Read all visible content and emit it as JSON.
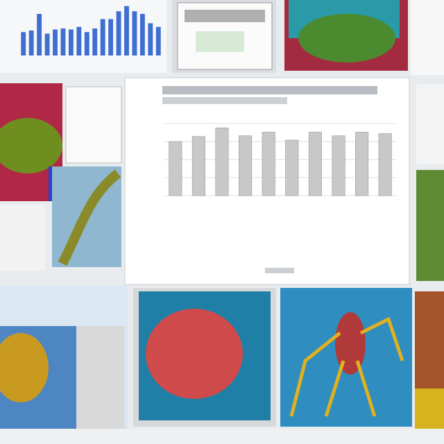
{
  "chart_data": [
    {
      "type": "bar",
      "values": [
        75,
        82,
        94,
        83,
        88,
        77,
        88,
        83,
        88,
        86
      ],
      "color": "#c8c8c8",
      "ylim": [
        0,
        100
      ],
      "yticks": [
        0,
        25,
        50,
        75,
        100
      ],
      "grid": true
    },
    {
      "type": "bar",
      "values": [
        45,
        48,
        80,
        42,
        50,
        52,
        50,
        55,
        45,
        52,
        70,
        70,
        85,
        95,
        85,
        80,
        62,
        55
      ],
      "color": "#3f6fd0",
      "ylim": [
        0,
        100
      ],
      "yticks": [],
      "grid": false
    }
  ]
}
